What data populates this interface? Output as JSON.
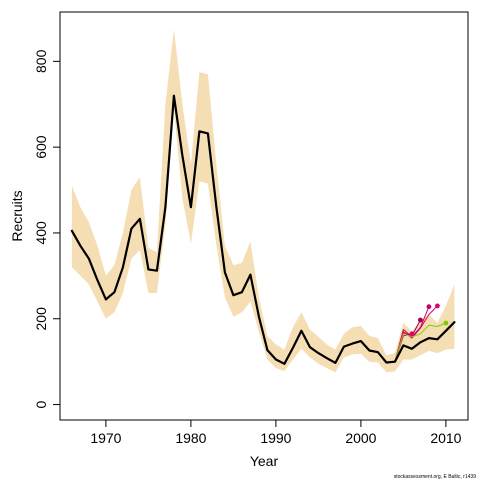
{
  "chart_data": {
    "type": "line",
    "xlabel": "Year",
    "ylabel": "Recruits",
    "xlim": [
      1964.6,
      2012.6
    ],
    "ylim": [
      -36,
      915
    ],
    "x_ticks": [
      1970,
      1980,
      1990,
      2000,
      2010
    ],
    "y_ticks": [
      0,
      200,
      400,
      600,
      800
    ],
    "footnote": "stockassessment.org, E Baltic, r1439",
    "grid": false,
    "colors": {
      "band": "#F5DEB3",
      "estimate": "#000000",
      "retro": [
        "#E0006E",
        "#A00050",
        "#C80064",
        "#E0006E",
        "#7CCD00",
        "#A020F0"
      ]
    },
    "confidence_band": {
      "x": [
        1966,
        1967,
        1968,
        1969,
        1970,
        1971,
        1972,
        1973,
        1974,
        1975,
        1976,
        1977,
        1978,
        1979,
        1980,
        1981,
        1982,
        1983,
        1984,
        1985,
        1986,
        1987,
        1988,
        1989,
        1990,
        1991,
        1992,
        1993,
        1994,
        1995,
        1996,
        1997,
        1998,
        1999,
        2000,
        2001,
        2002,
        2003,
        2004,
        2005,
        2006,
        2007,
        2008,
        2009,
        2010,
        2011
      ],
      "lower": [
        320,
        300,
        280,
        240,
        200,
        215,
        260,
        340,
        360,
        260,
        260,
        420,
        690,
        480,
        375,
        520,
        515,
        370,
        250,
        205,
        215,
        240,
        170,
        105,
        85,
        78,
        105,
        130,
        110,
        95,
        85,
        75,
        110,
        117,
        118,
        100,
        98,
        75,
        77,
        105,
        105,
        115,
        125,
        120,
        128,
        130
      ],
      "upper": [
        510,
        460,
        425,
        370,
        300,
        325,
        400,
        500,
        530,
        365,
        355,
        700,
        875,
        700,
        560,
        775,
        770,
        560,
        370,
        325,
        330,
        380,
        250,
        160,
        140,
        128,
        180,
        215,
        175,
        158,
        140,
        128,
        165,
        180,
        183,
        160,
        155,
        115,
        120,
        190,
        170,
        195,
        210,
        190,
        230,
        280
      ]
    },
    "series": [
      {
        "x": [
          1966,
          1967,
          1968,
          1969,
          1970,
          1971,
          1972,
          1973,
          1974,
          1975,
          1976,
          1977,
          1978,
          1979,
          1980,
          1981,
          1982,
          1983,
          1984,
          1985,
          1986,
          1987,
          1988,
          1989,
          1990,
          1991,
          1992,
          1993,
          1994,
          1995,
          1996,
          1997,
          1998,
          1999,
          2000,
          2001,
          2002,
          2003,
          2004,
          2005,
          2006,
          2007,
          2008,
          2009,
          2010,
          2011
        ],
        "values": [
          405,
          370,
          340,
          290,
          245,
          262,
          320,
          410,
          433,
          315,
          312,
          460,
          720,
          580,
          460,
          637,
          632,
          460,
          308,
          255,
          262,
          303,
          205,
          127,
          105,
          95,
          132,
          172,
          134,
          120,
          108,
          97,
          135,
          142,
          148,
          126,
          122,
          98,
          100,
          138,
          130,
          145,
          155,
          152,
          172,
          192
        ]
      },
      {
        "x": [
          1966,
          1967,
          1968,
          1969,
          1970,
          1971,
          1972,
          1973,
          1974,
          1975,
          1976,
          1977,
          1978,
          1979,
          1980,
          1981,
          1982,
          1983,
          1984,
          1985,
          1986,
          1987,
          1988,
          1989,
          1990,
          1991,
          1992,
          1993,
          1994,
          1995,
          1996,
          1997,
          1998,
          1999,
          2000,
          2001,
          2002,
          2003,
          2004,
          2005,
          2006
        ],
        "values": [
          405,
          370,
          340,
          290,
          245,
          262,
          320,
          410,
          433,
          315,
          312,
          460,
          720,
          580,
          460,
          637,
          632,
          460,
          308,
          255,
          262,
          303,
          205,
          127,
          105,
          95,
          132,
          172,
          134,
          120,
          108,
          97,
          135,
          142,
          148,
          126,
          122,
          98,
          100,
          160,
          165
        ]
      },
      {
        "x": [
          1966,
          1967,
          1968,
          1969,
          1970,
          1971,
          1972,
          1973,
          1974,
          1975,
          1976,
          1977,
          1978,
          1979,
          1980,
          1981,
          1982,
          1983,
          1984,
          1985,
          1986,
          1987,
          1988,
          1989,
          1990,
          1991,
          1992,
          1993,
          1994,
          1995,
          1996,
          1997,
          1998,
          1999,
          2000,
          2001,
          2002,
          2003,
          2004,
          2005,
          2006,
          2007
        ],
        "values": [
          405,
          370,
          340,
          290,
          245,
          262,
          320,
          410,
          433,
          315,
          312,
          460,
          720,
          580,
          460,
          637,
          632,
          460,
          308,
          255,
          262,
          303,
          205,
          127,
          105,
          95,
          132,
          172,
          134,
          120,
          108,
          97,
          135,
          142,
          148,
          126,
          122,
          98,
          100,
          168,
          160,
          197
        ]
      },
      {
        "x": [
          1966,
          1967,
          1968,
          1969,
          1970,
          1971,
          1972,
          1973,
          1974,
          1975,
          1976,
          1977,
          1978,
          1979,
          1980,
          1981,
          1982,
          1983,
          1984,
          1985,
          1986,
          1987,
          1988,
          1989,
          1990,
          1991,
          1992,
          1993,
          1994,
          1995,
          1996,
          1997,
          1998,
          1999,
          2000,
          2001,
          2002,
          2003,
          2004,
          2005,
          2006,
          2007,
          2008
        ],
        "values": [
          405,
          370,
          340,
          290,
          245,
          262,
          320,
          410,
          433,
          315,
          312,
          460,
          720,
          580,
          460,
          637,
          632,
          460,
          308,
          255,
          262,
          303,
          205,
          127,
          105,
          95,
          132,
          172,
          134,
          120,
          108,
          97,
          135,
          142,
          148,
          126,
          122,
          98,
          100,
          175,
          158,
          180,
          228
        ]
      },
      {
        "x": [
          1966,
          1967,
          1968,
          1969,
          1970,
          1971,
          1972,
          1973,
          1974,
          1975,
          1976,
          1977,
          1978,
          1979,
          1980,
          1981,
          1982,
          1983,
          1984,
          1985,
          1986,
          1987,
          1988,
          1989,
          1990,
          1991,
          1992,
          1993,
          1994,
          1995,
          1996,
          1997,
          1998,
          1999,
          2000,
          2001,
          2002,
          2003,
          2004,
          2005,
          2006,
          2007,
          2008,
          2009
        ],
        "values": [
          405,
          370,
          340,
          290,
          245,
          262,
          320,
          410,
          433,
          315,
          312,
          460,
          720,
          580,
          460,
          637,
          632,
          460,
          308,
          255,
          262,
          303,
          205,
          127,
          105,
          95,
          132,
          172,
          134,
          120,
          108,
          97,
          135,
          142,
          148,
          126,
          122,
          98,
          100,
          170,
          155,
          178,
          210,
          230
        ]
      },
      {
        "x": [
          1966,
          1967,
          1968,
          1969,
          1970,
          1971,
          1972,
          1973,
          1974,
          1975,
          1976,
          1977,
          1978,
          1979,
          1980,
          1981,
          1982,
          1983,
          1984,
          1985,
          1986,
          1987,
          1988,
          1989,
          1990,
          1991,
          1992,
          1993,
          1994,
          1995,
          1996,
          1997,
          1998,
          1999,
          2000,
          2001,
          2002,
          2003,
          2004,
          2005,
          2006,
          2007,
          2008,
          2009,
          2010
        ],
        "values": [
          405,
          370,
          340,
          290,
          245,
          262,
          320,
          410,
          433,
          315,
          312,
          460,
          720,
          580,
          460,
          637,
          632,
          460,
          308,
          255,
          262,
          303,
          205,
          127,
          105,
          95,
          132,
          172,
          134,
          120,
          108,
          97,
          135,
          142,
          148,
          126,
          122,
          98,
          100,
          165,
          158,
          165,
          185,
          182,
          190
        ]
      }
    ]
  }
}
